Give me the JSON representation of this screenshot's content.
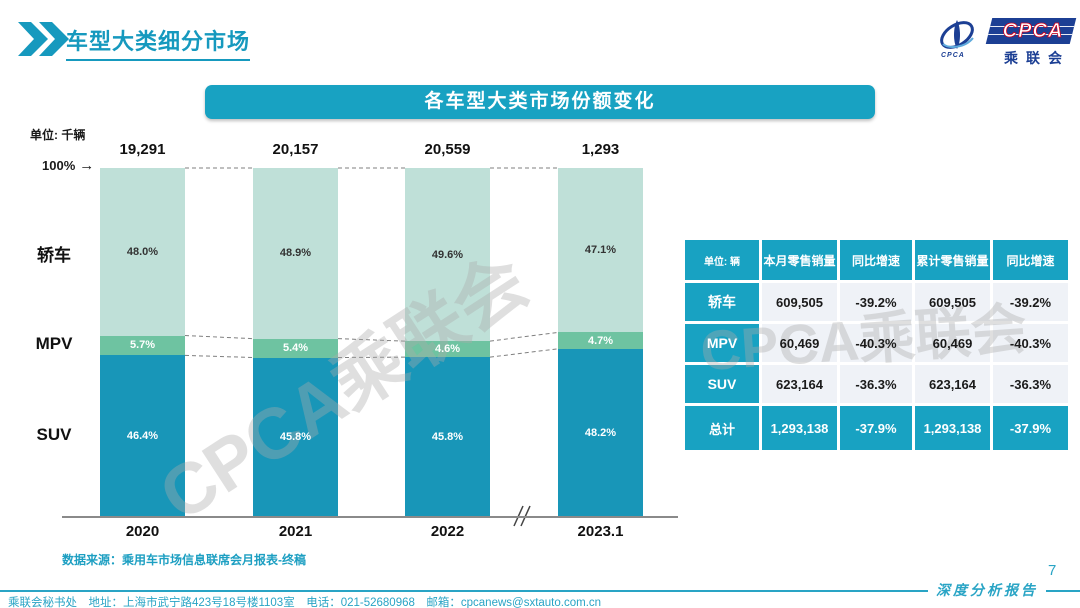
{
  "header": {
    "title": "车型大类细分市场"
  },
  "logo": {
    "main": "CPCA",
    "cn": "乘联会",
    "sub": "CPCA"
  },
  "banner": {
    "title": "各车型大类市场份额变化"
  },
  "watermark": {
    "text": "CPCA乘联会"
  },
  "chart_data": {
    "type": "bar",
    "subtype": "100%-stacked-column",
    "title": "各车型大类市场份额变化",
    "unit_label": "单位: 千辆",
    "axis_marker": "100%",
    "axis_arrow": "→",
    "axis_break": "//",
    "categories": [
      "2020",
      "2021",
      "2022",
      "2023.1"
    ],
    "column_totals": [
      "19,291",
      "20,157",
      "20,559",
      "1,293"
    ],
    "ylim": [
      0,
      100
    ],
    "legend_position": "left-of-bars",
    "grid": false,
    "series": [
      {
        "name": "轿车",
        "color": "#BFE0D8",
        "label_color": "#333333",
        "values": [
          48.0,
          48.9,
          49.6,
          47.1
        ],
        "labels": [
          "48.0%",
          "48.9%",
          "49.6%",
          "47.1%"
        ]
      },
      {
        "name": "MPV",
        "color": "#6EC3A1",
        "label_color": "#ffffff",
        "values": [
          5.7,
          5.4,
          4.6,
          4.7
        ],
        "labels": [
          "5.7%",
          "5.4%",
          "4.6%",
          "4.7%"
        ]
      },
      {
        "name": "SUV",
        "color": "#1896B8",
        "label_color": "#ffffff",
        "values": [
          46.4,
          45.8,
          45.8,
          48.2
        ],
        "labels": [
          "46.4%",
          "45.8%",
          "45.8%",
          "48.2%"
        ]
      }
    ]
  },
  "table": {
    "headers": [
      "单位: 辆",
      "本月零售销量",
      "同比增速",
      "累计零售销量",
      "同比增速"
    ],
    "rows": [
      {
        "label": "轿车",
        "cells": [
          "609,505",
          "-39.2%",
          "609,505",
          "-39.2%"
        ],
        "highlight": false
      },
      {
        "label": "MPV",
        "cells": [
          "60,469",
          "-40.3%",
          "60,469",
          "-40.3%"
        ],
        "highlight": false
      },
      {
        "label": "SUV",
        "cells": [
          "623,164",
          "-36.3%",
          "623,164",
          "-36.3%"
        ],
        "highlight": false
      },
      {
        "label": "总计",
        "cells": [
          "1,293,138",
          "-37.9%",
          "1,293,138",
          "-37.9%"
        ],
        "highlight": true
      }
    ]
  },
  "source": {
    "text": "数据来源：乘用车市场信息联席会月报表-终稿"
  },
  "footer": {
    "text": "乘联会秘书处　地址：上海市武宁路423号18号楼1103室　电话：021-52680968　邮箱：cpcanews@sxtauto.com.cn",
    "report_label": "深度分析报告",
    "page": "7"
  },
  "colors": {
    "accent_teal": "#18A2C2",
    "title_teal": "#1699BE",
    "footer_teal": "#29A4C5",
    "logo_blue": "#1C3F94",
    "logo_red": "#D5001C",
    "table_cell_bg": "#EFF2F7"
  }
}
